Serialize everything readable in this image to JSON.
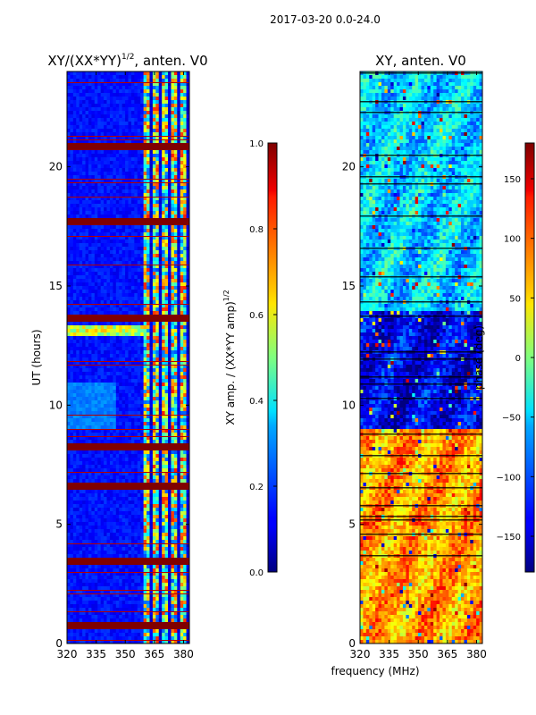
{
  "chart_data": {
    "suptitle": "2017-03-20 0.0-24.0",
    "colormap": "jet",
    "shared_xlabel": "frequency (MHz)",
    "panels": [
      {
        "type": "heatmap",
        "title_main": "XY/(XX*YY)",
        "title_sup": "1/2",
        "title_rest": ", anten. V0",
        "xlabel": "",
        "ylabel": "UT (hours)",
        "xlim": [
          320,
          383
        ],
        "ylim": [
          0,
          24
        ],
        "xticks": [
          320,
          335,
          350,
          365,
          380
        ],
        "yticks": [
          0,
          5,
          10,
          15,
          20
        ],
        "colorbar": {
          "label_main": "XY amp. / (XX*YY amp)",
          "label_sup": "1/2",
          "vmin": 0.0,
          "vmax": 1.0,
          "ticks": [
            "0.0",
            "0.2",
            "0.4",
            "0.6",
            "0.8",
            "1.0"
          ],
          "tick_values": [
            0.0,
            0.2,
            0.4,
            0.6,
            0.8,
            1.0
          ]
        },
        "full_value_rows_ut_hours": [
          0.7,
          3.4,
          6.6,
          8.3,
          13.6,
          17.7,
          20.9
        ],
        "active_band_mhz": [
          360,
          383
        ],
        "background_level": 0.1
      },
      {
        "type": "heatmap",
        "title_main": "XY, anten. V0",
        "xlabel": "frequency (MHz)",
        "ylabel": "",
        "xlim": [
          320,
          383
        ],
        "ylim": [
          0,
          24
        ],
        "xticks": [
          320,
          335,
          350,
          365,
          380
        ],
        "yticks": [
          0,
          5,
          10,
          15,
          20
        ],
        "colorbar": {
          "label": "phase (deg)",
          "vmin": -180,
          "vmax": 180,
          "ticks": [
            "−150",
            "−100",
            "−50",
            "0",
            "50",
            "100",
            "150"
          ],
          "tick_values": [
            -150,
            -100,
            -50,
            0,
            50,
            100,
            150
          ]
        },
        "dominant_phase_ranges": [
          {
            "ut_range": [
              0,
              9
            ],
            "phase_deg": 80
          },
          {
            "ut_range": [
              9,
              14
            ],
            "phase_deg": -140
          },
          {
            "ut_range": [
              14,
              24
            ],
            "phase_deg": -60
          }
        ]
      }
    ]
  }
}
